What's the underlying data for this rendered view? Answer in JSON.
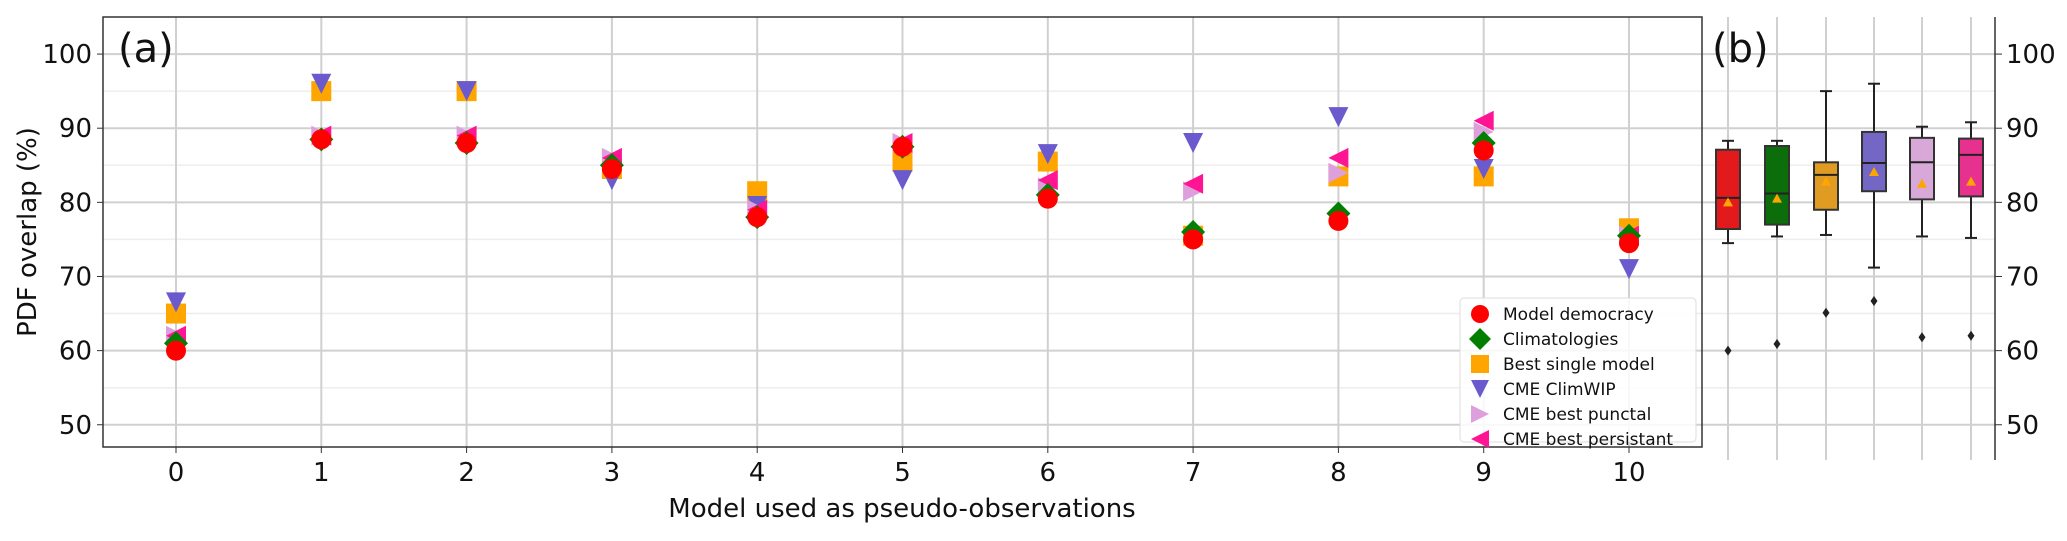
{
  "chart_data": [
    {
      "type": "scatter",
      "panel_label": "(a)",
      "xlabel": "Model used as pseudo-observations",
      "ylabel": "PDF overlap (%)",
      "x": [
        0,
        1,
        2,
        3,
        4,
        5,
        6,
        7,
        8,
        9,
        10
      ],
      "xticks": [
        "0",
        "1",
        "2",
        "3",
        "4",
        "5",
        "6",
        "7",
        "8",
        "9",
        "10"
      ],
      "yticks": [
        "50",
        "60",
        "70",
        "80",
        "90",
        "100"
      ],
      "ylim": [
        47,
        105
      ],
      "grid": true,
      "legend_position": "bottom-right",
      "series": [
        {
          "name": "Model democracy",
          "marker": "circle",
          "color": "#ff0000",
          "values": [
            60,
            88.5,
            88,
            84.5,
            78,
            87.5,
            80.5,
            75,
            77.5,
            87,
            74.5
          ]
        },
        {
          "name": "Climatologies",
          "marker": "diamond",
          "color": "#007f00",
          "values": [
            61,
            88.5,
            88,
            85,
            78,
            87.5,
            81,
            76,
            78.5,
            88,
            75.5
          ]
        },
        {
          "name": "Best single model",
          "marker": "square",
          "color": "#ffa500",
          "values": [
            65,
            95,
            95,
            84.5,
            81.5,
            85.5,
            85.5,
            75.5,
            83.5,
            83.5,
            76.5
          ]
        },
        {
          "name": "CME ClimWIP",
          "marker": "triangle-down",
          "color": "#6a5acd",
          "values": [
            66.5,
            96,
            95,
            83,
            79.5,
            83,
            86.5,
            88,
            91.5,
            84.5,
            71
          ]
        },
        {
          "name": "CME best punctal",
          "marker": "triangle-right",
          "color": "#dda0dd",
          "values": [
            62,
            89,
            89,
            86,
            79,
            88,
            82,
            81.5,
            84,
            89.5,
            75.5
          ]
        },
        {
          "name": "CME best persistant",
          "marker": "triangle-left",
          "color": "#ff1493",
          "values": [
            62,
            89,
            89,
            86,
            79,
            88,
            83,
            82.5,
            86,
            91,
            75.5
          ]
        }
      ]
    },
    {
      "type": "box",
      "panel_label": "(b)",
      "yticks": [
        "50",
        "60",
        "70",
        "80",
        "90",
        "100"
      ],
      "ylim": [
        47,
        105
      ],
      "grid": true,
      "boxes": [
        {
          "name": "Model democracy",
          "color": "#e31a1c",
          "whisker_low": 74.5,
          "q1": 76.4,
          "median": 80.6,
          "q3": 87.1,
          "whisker_high": 88.3,
          "mean": 80.0,
          "outliers": [
            60.0
          ]
        },
        {
          "name": "Climatologies",
          "color": "#0b6e0b",
          "whisker_low": 75.4,
          "q1": 77.0,
          "median": 81.2,
          "q3": 87.6,
          "whisker_high": 88.3,
          "mean": 80.5,
          "outliers": [
            60.9
          ]
        },
        {
          "name": "Best single model",
          "color": "#e09b22",
          "whisker_low": 75.6,
          "q1": 79.0,
          "median": 83.7,
          "q3": 85.4,
          "whisker_high": 95.0,
          "mean": 82.8,
          "outliers": [
            65.1
          ]
        },
        {
          "name": "CME ClimWIP",
          "color": "#7466c4",
          "whisker_low": 71.2,
          "q1": 81.5,
          "median": 85.3,
          "q3": 89.5,
          "whisker_high": 96.0,
          "mean": 84.1,
          "outliers": [
            66.7
          ]
        },
        {
          "name": "CME best punctal",
          "color": "#d8a8d8",
          "whisker_low": 75.4,
          "q1": 80.4,
          "median": 85.4,
          "q3": 88.7,
          "whisker_high": 90.2,
          "mean": 82.5,
          "outliers": [
            61.8
          ]
        },
        {
          "name": "CME best persistant",
          "color": "#e6318f",
          "whisker_low": 75.2,
          "q1": 80.8,
          "median": 86.4,
          "q3": 88.6,
          "whisker_high": 90.8,
          "mean": 82.8,
          "outliers": [
            62.0
          ]
        }
      ],
      "mean_marker_color": "#ffa500"
    }
  ]
}
